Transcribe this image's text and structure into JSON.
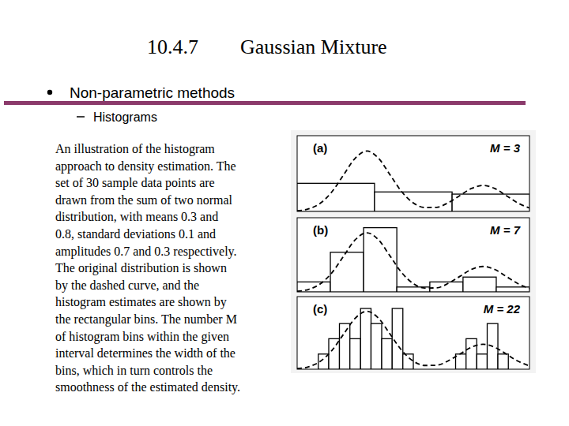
{
  "slide": {
    "section": "10.4.7",
    "title": "Gaussian Mixture",
    "bullet": "Non-parametric methods",
    "sub_bullet": "Histograms",
    "caption": [
      "An illustration of the histogram",
      "approach to density estimation. The",
      "set of 30 sample data points are",
      "drawn from the sum of two normal",
      "distribution, with means 0.3 and",
      "0.8, standard deviations 0.1 and",
      "amplitudes 0.7 and 0.3 respectively.",
      "The original distribution is shown",
      "by the dashed curve, and the",
      "histogram estimates are shown by",
      "the rectangular bins. The number M",
      "of histogram bins within the given",
      "interval determines the width of the",
      "bins, which in turn controls the",
      "smoothness of the estimated density."
    ]
  },
  "chart_data": [
    {
      "type": "histogram",
      "title": "(a)",
      "annotation": "M = 3",
      "xlim": [
        0,
        1
      ],
      "ylim": [
        0,
        3.5
      ],
      "tick_labels": false,
      "color": "#ffffff",
      "bins": [
        0,
        0.333,
        0.667,
        1
      ],
      "values": [
        1.3,
        0.9,
        0.8
      ],
      "series": [
        {
          "type": "line",
          "line_style": "dashed",
          "color": "#000000",
          "x": [
            0,
            0.05,
            0.1,
            0.15,
            0.2,
            0.25,
            0.3,
            0.35,
            0.4,
            0.45,
            0.5,
            0.55,
            0.6,
            0.65,
            0.7,
            0.75,
            0.8,
            0.85,
            0.9,
            0.95,
            1
          ],
          "values": [
            0.03,
            0.12,
            0.38,
            0.91,
            1.69,
            2.46,
            2.79,
            2.46,
            1.69,
            0.91,
            0.39,
            0.18,
            0.19,
            0.4,
            0.73,
            1.06,
            1.2,
            1.06,
            0.73,
            0.39,
            0.16
          ]
        }
      ]
    },
    {
      "type": "histogram",
      "title": "(b)",
      "annotation": "M = 7",
      "xlim": [
        0,
        1
      ],
      "ylim": [
        0,
        3.5
      ],
      "tick_labels": false,
      "color": "#ffffff",
      "bins": [
        0,
        0.143,
        0.286,
        0.429,
        0.571,
        0.714,
        0.857,
        1
      ],
      "values": [
        0.47,
        1.87,
        3.03,
        0.23,
        0.47,
        0.7,
        0.23
      ],
      "series": [
        {
          "type": "line",
          "line_style": "dashed",
          "color": "#000000",
          "x": [
            0,
            0.05,
            0.1,
            0.15,
            0.2,
            0.25,
            0.3,
            0.35,
            0.4,
            0.45,
            0.5,
            0.55,
            0.6,
            0.65,
            0.7,
            0.75,
            0.8,
            0.85,
            0.9,
            0.95,
            1
          ],
          "values": [
            0.03,
            0.12,
            0.38,
            0.91,
            1.69,
            2.46,
            2.79,
            2.46,
            1.69,
            0.91,
            0.39,
            0.18,
            0.19,
            0.4,
            0.73,
            1.06,
            1.2,
            1.06,
            0.73,
            0.39,
            0.16
          ]
        }
      ]
    },
    {
      "type": "histogram",
      "title": "(c)",
      "annotation": "M = 22",
      "xlim": [
        0,
        1
      ],
      "ylim": [
        0,
        3.5
      ],
      "tick_labels": false,
      "color": "#ffffff",
      "bins": [
        0,
        0.045,
        0.091,
        0.136,
        0.182,
        0.227,
        0.273,
        0.318,
        0.364,
        0.409,
        0.455,
        0.5,
        0.545,
        0.591,
        0.636,
        0.682,
        0.727,
        0.773,
        0.818,
        0.864,
        0.909,
        0.955,
        1
      ],
      "values": [
        0,
        0,
        0.73,
        1.47,
        2.2,
        1.47,
        2.93,
        2.2,
        1.47,
        2.93,
        0.73,
        0,
        0,
        0,
        0,
        0.73,
        1.47,
        0.73,
        2.2,
        0.73,
        0,
        0
      ],
      "series": [
        {
          "type": "line",
          "line_style": "dashed",
          "color": "#000000",
          "x": [
            0,
            0.05,
            0.1,
            0.15,
            0.2,
            0.25,
            0.3,
            0.35,
            0.4,
            0.45,
            0.5,
            0.55,
            0.6,
            0.65,
            0.7,
            0.75,
            0.8,
            0.85,
            0.9,
            0.95,
            1
          ],
          "values": [
            0.03,
            0.12,
            0.38,
            0.91,
            1.69,
            2.46,
            2.79,
            2.46,
            1.69,
            0.91,
            0.39,
            0.18,
            0.19,
            0.4,
            0.73,
            1.06,
            1.2,
            1.06,
            0.73,
            0.39,
            0.16
          ]
        }
      ]
    }
  ]
}
